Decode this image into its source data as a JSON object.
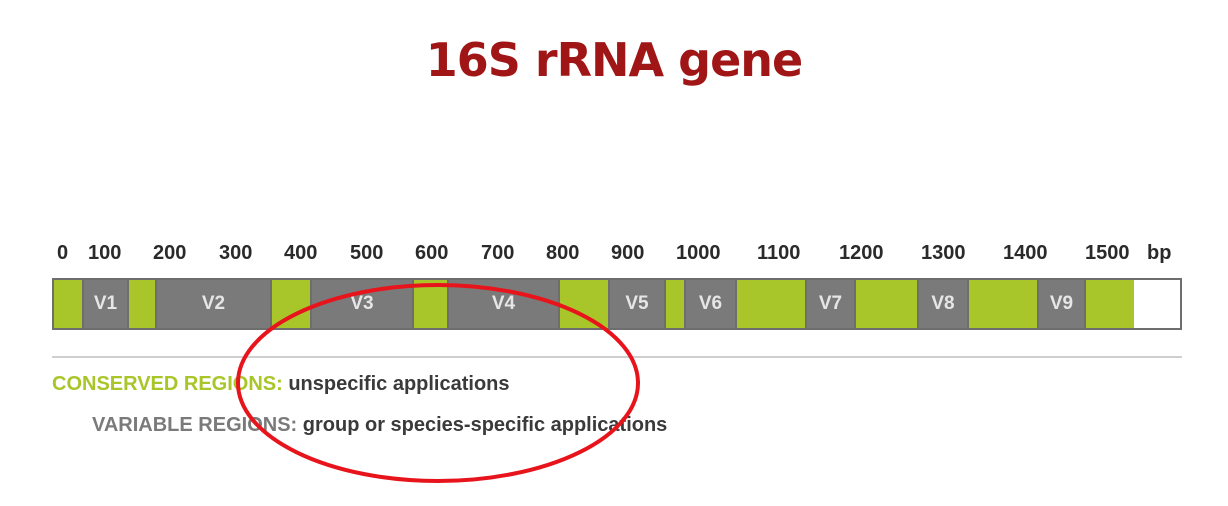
{
  "title": "16S rRNA gene",
  "colors": {
    "title": "#a01616",
    "conserved": "#a8c62a",
    "variable": "#7a7a7a",
    "annotation_circle": "#e8141c"
  },
  "scale": {
    "ticks": [
      "0",
      "100",
      "200",
      "300",
      "400",
      "500",
      "600",
      "700",
      "800",
      "900",
      "1000",
      "1100",
      "1200",
      "1300",
      "1400",
      "1500"
    ],
    "unit": "bp"
  },
  "segments": [
    {
      "type": "conserved",
      "label": ""
    },
    {
      "type": "variable",
      "label": "V1"
    },
    {
      "type": "conserved",
      "label": ""
    },
    {
      "type": "variable",
      "label": "V2"
    },
    {
      "type": "conserved",
      "label": ""
    },
    {
      "type": "variable",
      "label": "V3"
    },
    {
      "type": "conserved",
      "label": ""
    },
    {
      "type": "variable",
      "label": "V4"
    },
    {
      "type": "conserved",
      "label": ""
    },
    {
      "type": "variable",
      "label": "V5"
    },
    {
      "type": "conserved",
      "label": ""
    },
    {
      "type": "variable",
      "label": "V6"
    },
    {
      "type": "conserved",
      "label": ""
    },
    {
      "type": "variable",
      "label": "V7"
    },
    {
      "type": "conserved",
      "label": ""
    },
    {
      "type": "variable",
      "label": "V8"
    },
    {
      "type": "conserved",
      "label": ""
    },
    {
      "type": "variable",
      "label": "V9"
    },
    {
      "type": "conserved",
      "label": ""
    }
  ],
  "legend": {
    "conserved_label": "CONSERVED REGIONS:",
    "conserved_desc": "unspecific applications",
    "variable_label": "VARIABLE REGIONS:",
    "variable_desc": "group or species-specific applications"
  }
}
